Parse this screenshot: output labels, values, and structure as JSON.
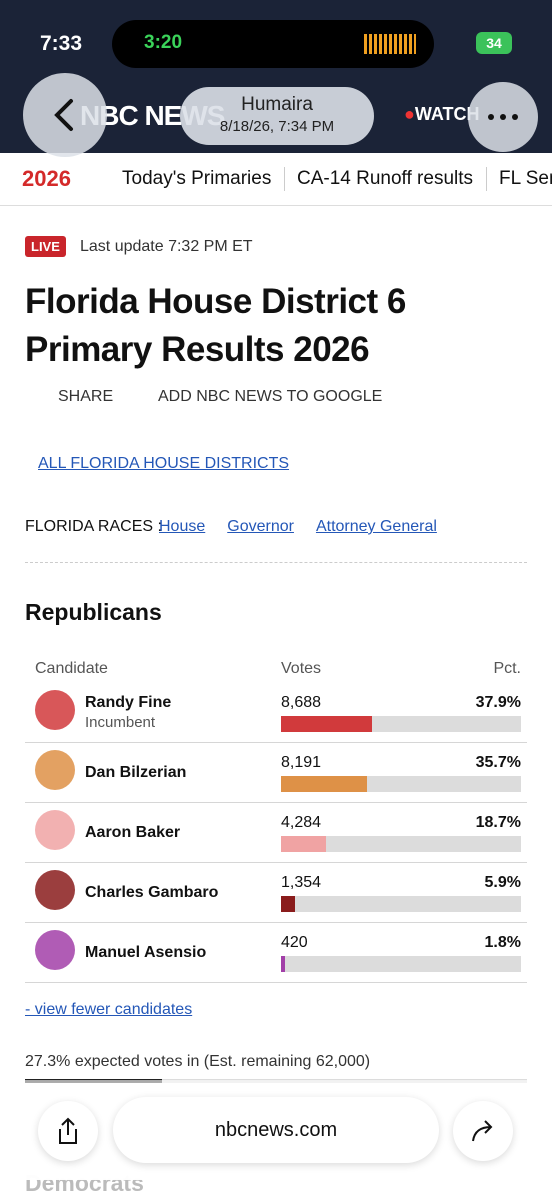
{
  "status_bar": {
    "time": "7:33",
    "call_time": "3:20",
    "battery": "34"
  },
  "browser_header": {
    "brand": "NBC NEWS",
    "watch": "WATCH",
    "contact_name": "Humaira",
    "timestamp": "8/18/26, 7:34 PM"
  },
  "nav": {
    "logo": "2026",
    "links": [
      "Today's Primaries",
      "CA-14 Runoff results",
      "FL Senate Pri"
    ]
  },
  "article": {
    "live": "LIVE",
    "last_update": "Last update 7:32 PM ET",
    "title": "Florida House District 6 Primary Results 2026",
    "share": "SHARE",
    "add_google": "ADD NBC NEWS TO GOOGLE",
    "back_link": "ALL FLORIDA HOUSE DISTRICTS",
    "races_label": "FLORIDA RACES :",
    "races": [
      "House",
      "Governor",
      "Attorney General"
    ]
  },
  "results": {
    "party": "Republicans",
    "columns": [
      "Candidate",
      "Votes",
      "Pct."
    ],
    "candidates": [
      {
        "name": "Randy Fine",
        "note": "Incumbent",
        "votes": "8,688",
        "pct": {
          "value": 37.9,
          "label": "37.9%"
        },
        "color": "#d13a3c"
      },
      {
        "name": "Dan Bilzerian",
        "votes": "8,191",
        "pct": {
          "value": 35.7,
          "label": "35.7%"
        },
        "color": "#de9147"
      },
      {
        "name": "Aaron Baker",
        "votes": "4,284",
        "pct": {
          "value": 18.7,
          "label": "18.7%"
        },
        "color": "#f0a3a3"
      },
      {
        "name": "Charles Gambaro",
        "votes": "1,354",
        "pct": {
          "value": 5.9,
          "label": "5.9%"
        },
        "color": "#8a1c1c"
      },
      {
        "name": "Manuel Asensio",
        "votes": "420",
        "pct": {
          "value": 1.8,
          "label": "1.8%"
        },
        "color": "#a23fa8"
      }
    ],
    "view_fewer": "- view fewer candidates",
    "expected_pct": {
      "value": 27.3,
      "label": "27.3%"
    },
    "expected_text": " expected votes in (Est. remaining 62,000)"
  },
  "next_section": "Democrats",
  "toolbar": {
    "url": "nbcnews.com"
  }
}
